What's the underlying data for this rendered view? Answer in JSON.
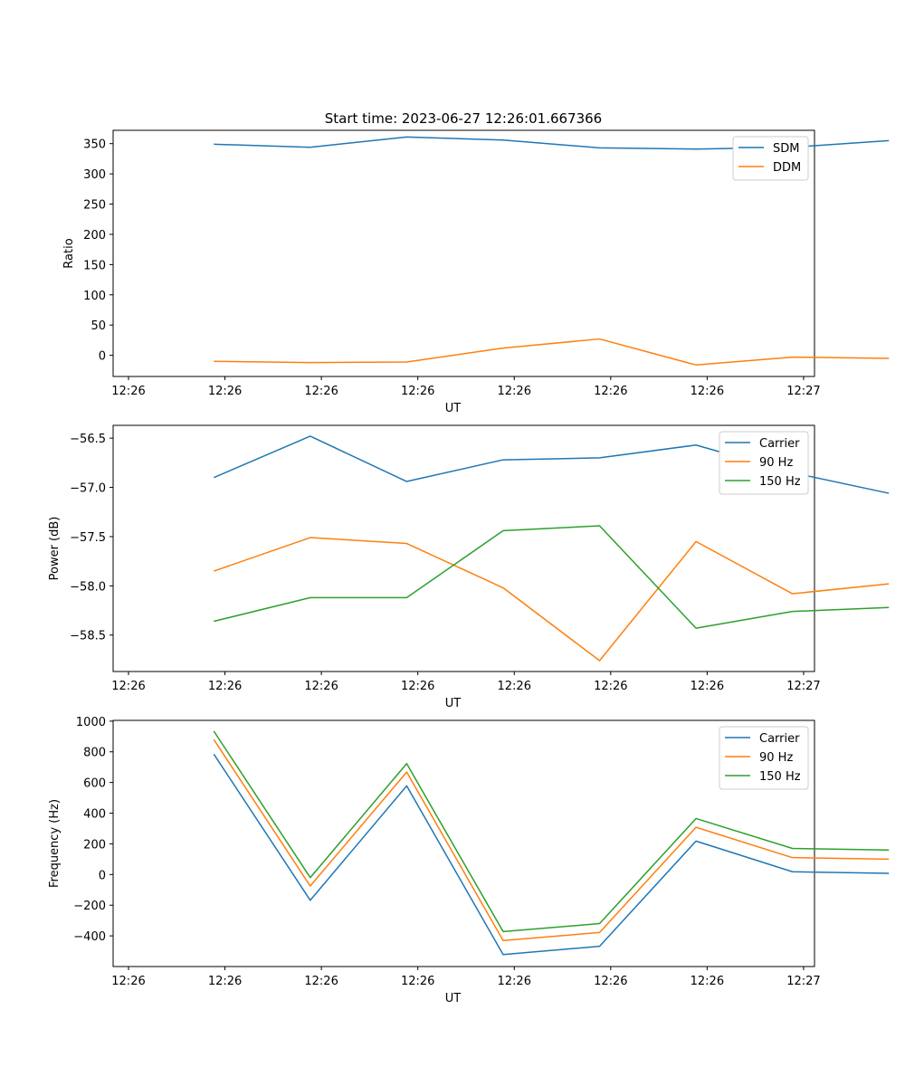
{
  "figure": {
    "title": "Start time: 2023-06-27 12:26:01.667366"
  },
  "chart_data": [
    {
      "type": "line",
      "xlabel": "UT",
      "ylabel": "Ratio",
      "x_tick_labels": [
        "12:26",
        "12:26",
        "12:26",
        "12:26",
        "12:26",
        "12:26",
        "12:26",
        "12:27"
      ],
      "xlim": [
        0,
        9
      ],
      "ylim": [
        -35,
        372
      ],
      "y_ticks": [
        0,
        50,
        100,
        150,
        200,
        250,
        300,
        350
      ],
      "legend_position": "top-right",
      "grid": false,
      "x": [
        0.5,
        1.5,
        2.5,
        3.5,
        4.5,
        5.5,
        6.5,
        7.5
      ],
      "series": [
        {
          "name": "SDM",
          "color": "#1f77b4",
          "values": [
            349,
            344,
            361,
            356,
            343,
            341,
            344,
            355
          ]
        },
        {
          "name": "DDM",
          "color": "#ff7f0e",
          "values": [
            -10,
            -12,
            -11,
            12,
            27,
            -16,
            -3,
            -5
          ]
        }
      ]
    },
    {
      "type": "line",
      "xlabel": "UT",
      "ylabel": "Power (dB)",
      "x_tick_labels": [
        "12:26",
        "12:26",
        "12:26",
        "12:26",
        "12:26",
        "12:26",
        "12:26",
        "12:27"
      ],
      "xlim": [
        0,
        9
      ],
      "ylim": [
        -58.87,
        -56.37
      ],
      "y_ticks": [
        -56.5,
        -57.0,
        -57.5,
        -58.0,
        -58.5
      ],
      "y_tick_labels": [
        "−56.5",
        "−57.0",
        "−57.5",
        "−58.0",
        "−58.5"
      ],
      "legend_position": "top-right",
      "grid": false,
      "x": [
        0.5,
        1.5,
        2.5,
        3.5,
        4.5,
        5.5,
        6.5,
        7.5
      ],
      "series": [
        {
          "name": "Carrier",
          "color": "#1f77b4",
          "values": [
            -56.9,
            -56.48,
            -56.94,
            -56.72,
            -56.7,
            -56.57,
            -56.85,
            -57.06
          ]
        },
        {
          "name": "90 Hz",
          "color": "#ff7f0e",
          "values": [
            -57.85,
            -57.51,
            -57.57,
            -58.02,
            -58.76,
            -57.55,
            -58.08,
            -57.98
          ]
        },
        {
          "name": "150 Hz",
          "color": "#2ca02c",
          "values": [
            -58.36,
            -58.12,
            -58.12,
            -57.44,
            -57.39,
            -58.43,
            -58.26,
            -58.22
          ]
        }
      ]
    },
    {
      "type": "line",
      "xlabel": "UT",
      "ylabel": "Frequency (Hz)",
      "x_tick_labels": [
        "12:26",
        "12:26",
        "12:26",
        "12:26",
        "12:26",
        "12:26",
        "12:26",
        "12:27"
      ],
      "xlim": [
        0,
        9
      ],
      "ylim": [
        -600,
        1005
      ],
      "y_ticks": [
        -400,
        -200,
        0,
        200,
        400,
        600,
        800,
        1000
      ],
      "y_tick_labels": [
        "−400",
        "−200",
        "0",
        "200",
        "400",
        "600",
        "800",
        "1000"
      ],
      "legend_position": "top-right",
      "grid": false,
      "x": [
        0.5,
        1.5,
        2.5,
        3.5,
        4.5,
        5.5,
        6.5,
        7.5
      ],
      "series": [
        {
          "name": "Carrier",
          "color": "#1f77b4",
          "values": [
            785,
            -168,
            578,
            -522,
            -468,
            218,
            18,
            8
          ]
        },
        {
          "name": "90 Hz",
          "color": "#ff7f0e",
          "values": [
            880,
            -75,
            668,
            -430,
            -378,
            308,
            110,
            100
          ]
        },
        {
          "name": "150 Hz",
          "color": "#2ca02c",
          "values": [
            935,
            -20,
            723,
            -372,
            -320,
            365,
            170,
            160
          ]
        }
      ]
    }
  ]
}
